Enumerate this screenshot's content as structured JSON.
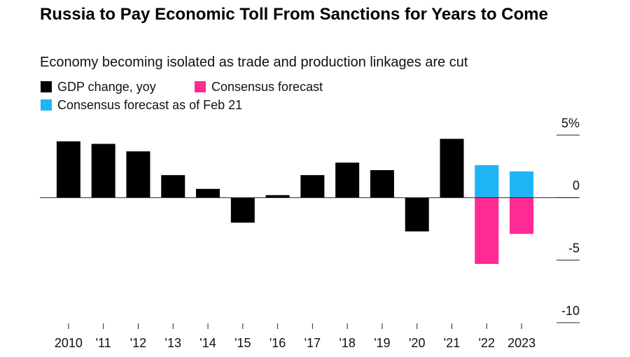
{
  "chart_data": {
    "type": "bar",
    "title": "Russia to Pay Economic Toll From Sanctions for Years to Come",
    "subtitle": "Economy becoming isolated as trade and production linkages are cut",
    "categories": [
      "2010",
      "'11",
      "'12",
      "'13",
      "'14",
      "'15",
      "'16",
      "'17",
      "'18",
      "'19",
      "'20",
      "'21",
      "'22",
      "2023"
    ],
    "series": [
      {
        "name": "GDP change, yoy",
        "color": "#000000",
        "values": [
          4.5,
          4.3,
          3.7,
          1.8,
          0.7,
          -2.0,
          0.2,
          1.8,
          2.8,
          2.2,
          -2.7,
          4.7,
          null,
          null
        ]
      },
      {
        "name": "Consensus forecast",
        "color": "#ff2a93",
        "values": [
          null,
          null,
          null,
          null,
          null,
          null,
          null,
          null,
          null,
          null,
          null,
          null,
          -5.3,
          -2.9
        ]
      },
      {
        "name": "Consensus forecast as of Feb 21",
        "color": "#1fb4f5",
        "values": [
          null,
          null,
          null,
          null,
          null,
          null,
          null,
          null,
          null,
          null,
          null,
          null,
          2.6,
          2.1
        ]
      }
    ],
    "ylim": [
      -10,
      5
    ],
    "yticks": [
      {
        "value": 5,
        "label": "5%"
      },
      0,
      -5,
      -10
    ]
  }
}
